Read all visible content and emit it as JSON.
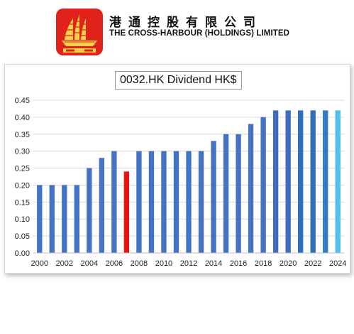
{
  "company": {
    "name_cn": "港通控股有限公司",
    "name_en": "THE CROSS-HARBOUR (HOLDINGS) LIMITED",
    "logo_icon": "junk-boat-icon",
    "logo_color": "#e1231c"
  },
  "chart_data": {
    "type": "bar",
    "title": "0032.HK Dividend HK$",
    "xlabel": "",
    "ylabel": "",
    "categories": [
      "2000",
      "2001",
      "2002",
      "2003",
      "2004",
      "2005",
      "2006",
      "2007",
      "2008",
      "2009",
      "2010",
      "2011",
      "2012",
      "2013",
      "2014",
      "2015",
      "2016",
      "2017",
      "2018",
      "2019",
      "2020",
      "2021",
      "2022",
      "2023",
      "2024"
    ],
    "values": [
      0.2,
      0.2,
      0.2,
      0.2,
      0.25,
      0.28,
      0.3,
      0.24,
      0.3,
      0.3,
      0.3,
      0.3,
      0.3,
      0.3,
      0.33,
      0.35,
      0.35,
      0.38,
      0.4,
      0.42,
      0.42,
      0.42,
      0.42,
      0.42,
      0.42
    ],
    "bar_colors": [
      "#4472c4",
      "#4472c4",
      "#4472c4",
      "#4472c4",
      "#4472c4",
      "#4472c4",
      "#4472c4",
      "#e8150f",
      "#4472c4",
      "#4472c4",
      "#4472c4",
      "#4472c4",
      "#4472c4",
      "#4472c4",
      "#4472c4",
      "#4472c4",
      "#4472c4",
      "#4472c4",
      "#4472c4",
      "#3e6bbf",
      "#3e6bbf",
      "#2f6fb8",
      "#2f6fb8",
      "#2f7ec4",
      "#4fc0ea"
    ],
    "x_tick_labels": [
      "2000",
      "2002",
      "2004",
      "2006",
      "2008",
      "2010",
      "2012",
      "2014",
      "2016",
      "2018",
      "2020",
      "2022",
      "2024"
    ],
    "y_ticks": [
      "0.00",
      "0.05",
      "0.10",
      "0.15",
      "0.20",
      "0.25",
      "0.30",
      "0.35",
      "0.40",
      "0.45"
    ],
    "ylim": [
      0,
      0.45
    ],
    "grid": true,
    "legend": "none"
  }
}
